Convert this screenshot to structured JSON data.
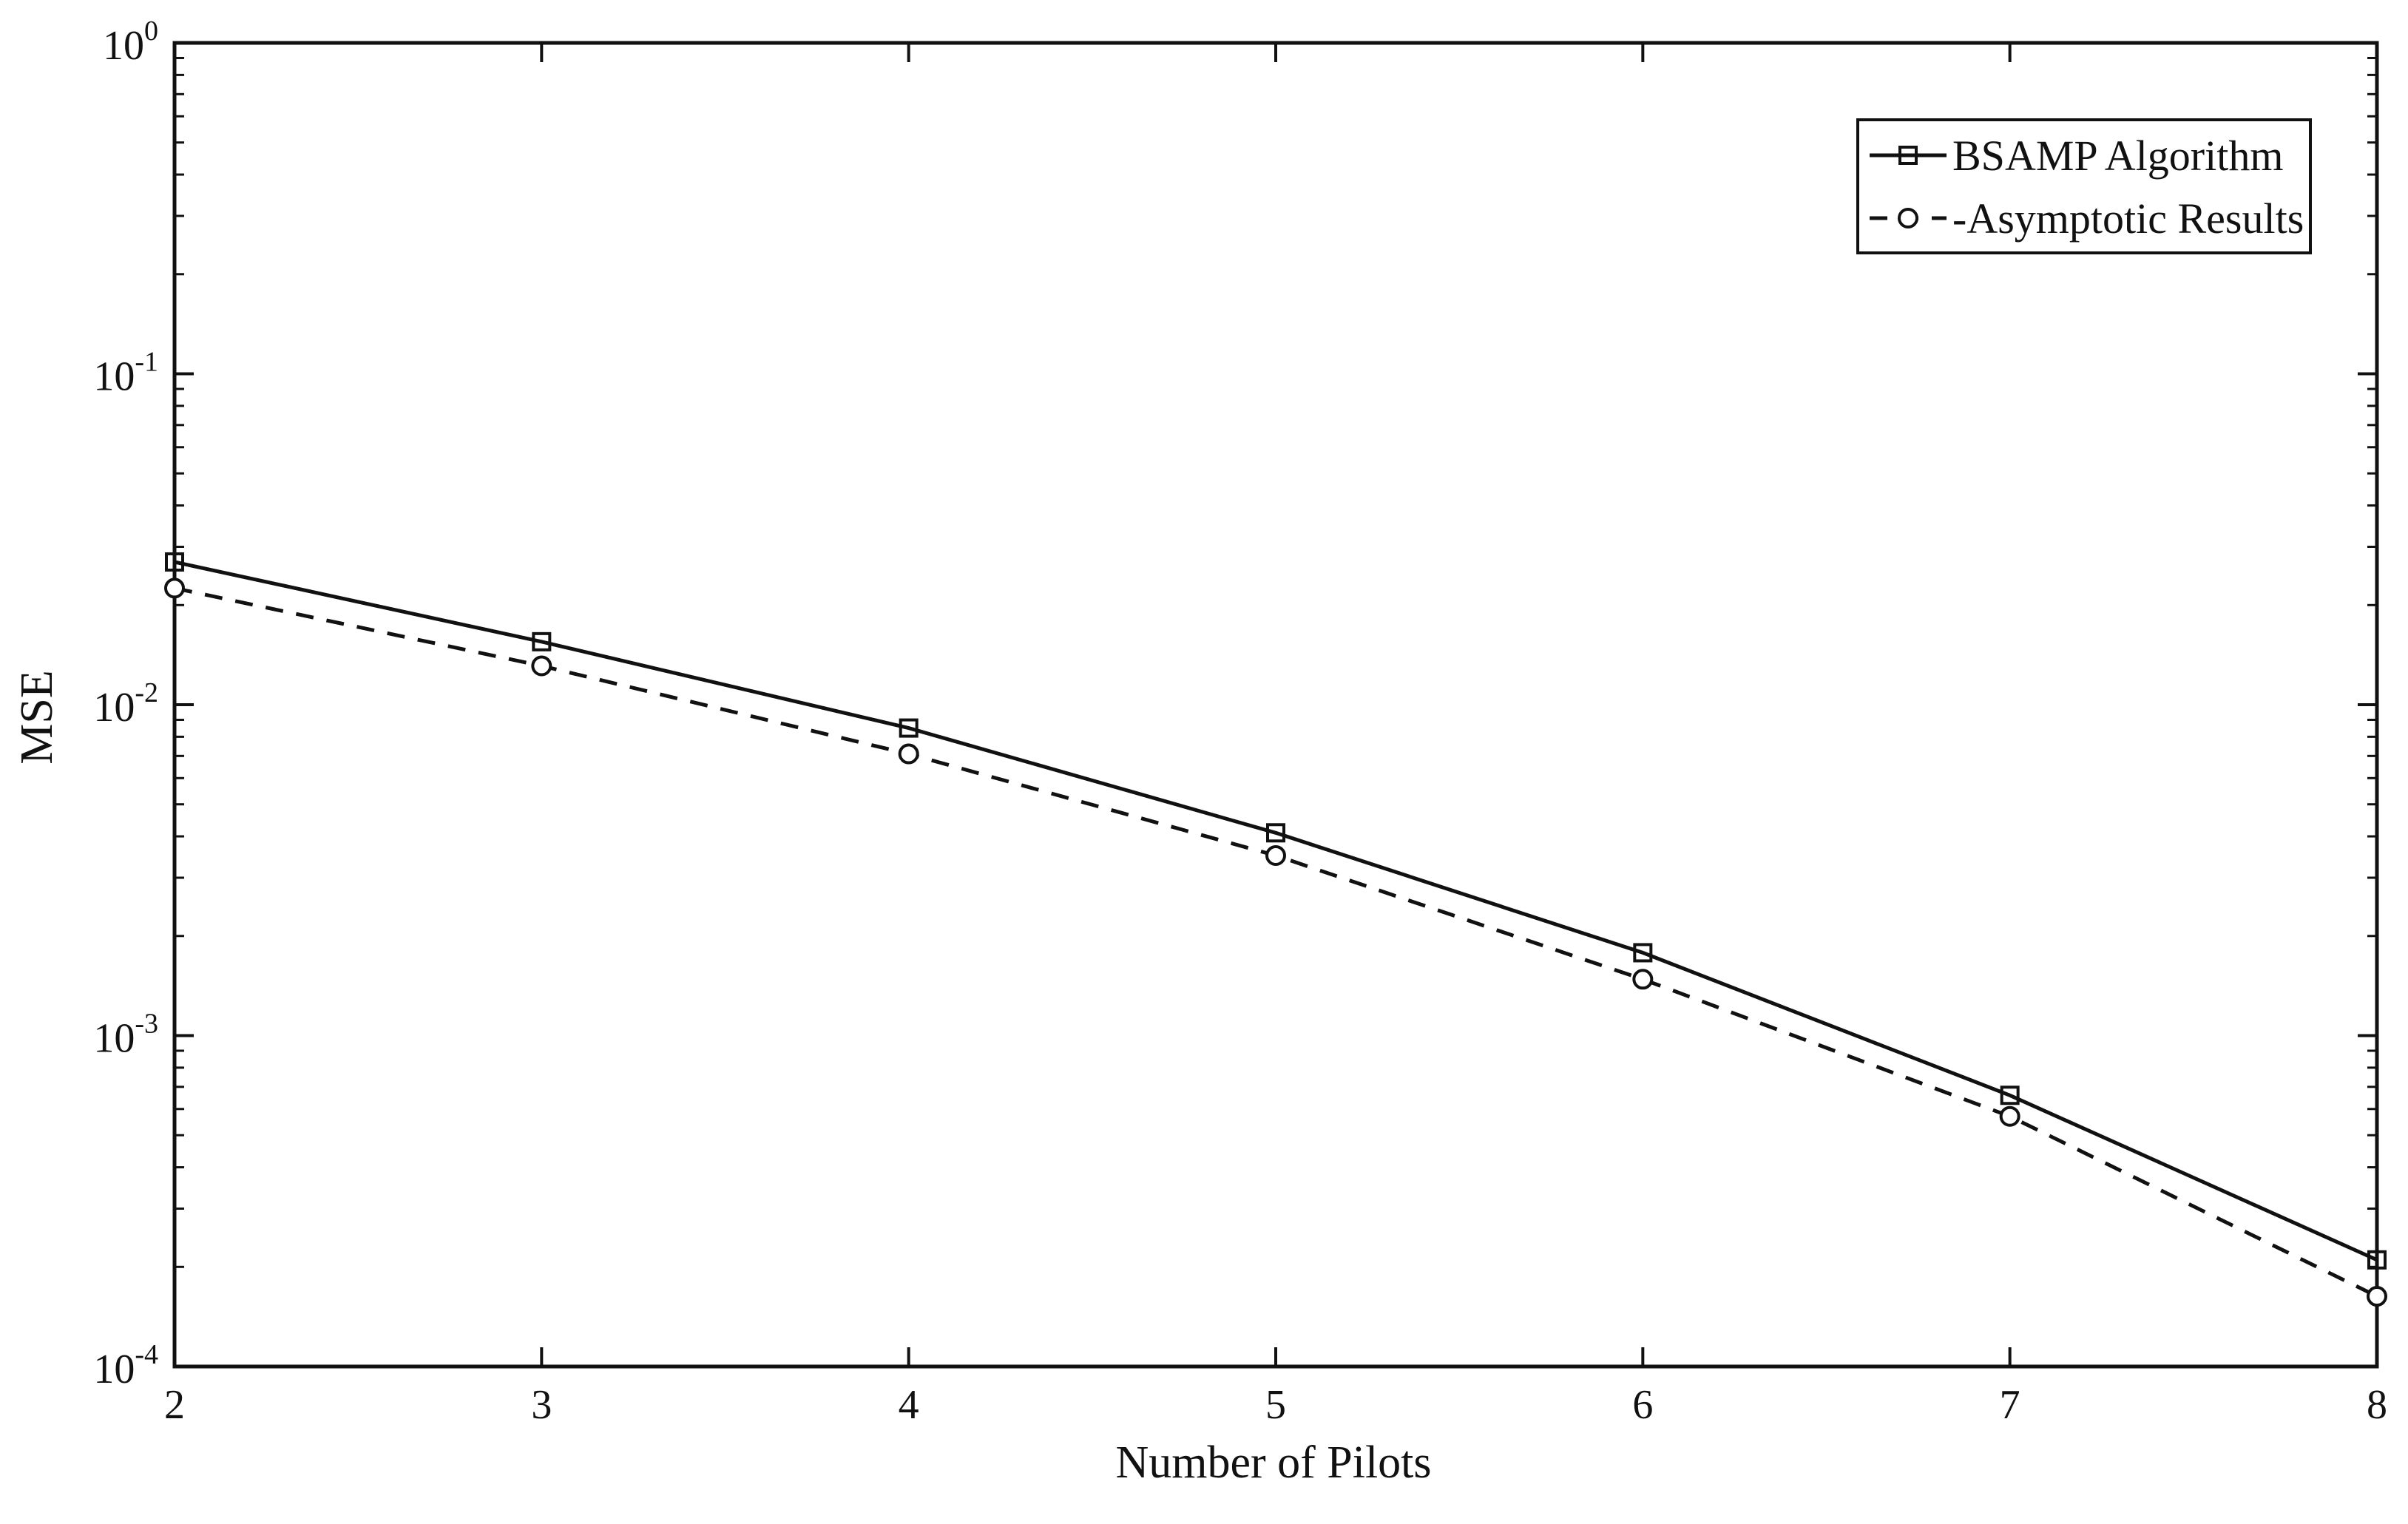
{
  "chart_data": {
    "type": "line",
    "xlabel": "Number of Pilots",
    "ylabel": "MSE",
    "x": [
      2,
      3,
      4,
      5,
      6,
      7,
      8
    ],
    "xlim": [
      2,
      8
    ],
    "ylim": [
      0.0001,
      1
    ],
    "yscale": "log",
    "x_ticks": [
      "2",
      "3",
      "4",
      "5",
      "6",
      "7",
      "8"
    ],
    "y_ticks": [
      {
        "value": 1,
        "base": "10",
        "exp": "0"
      },
      {
        "value": 0.1,
        "base": "10",
        "exp": "-1"
      },
      {
        "value": 0.01,
        "base": "10",
        "exp": "-2"
      },
      {
        "value": 0.001,
        "base": "10",
        "exp": "-3"
      },
      {
        "value": 0.0001,
        "base": "10",
        "exp": "-4"
      }
    ],
    "grid": false,
    "legend_position": "top-right",
    "series": [
      {
        "name": "BSAMP Algorithm",
        "line_style": "solid",
        "marker": "square",
        "color": "#111111",
        "values": [
          0.027,
          0.0155,
          0.0085,
          0.0041,
          0.00178,
          0.00066,
          0.00021
        ]
      },
      {
        "name": "-Asymptotic Results",
        "line_style": "dashed",
        "marker": "circle",
        "color": "#111111",
        "values": [
          0.0225,
          0.0131,
          0.0071,
          0.0035,
          0.00148,
          0.00057,
          0.000163
        ]
      }
    ]
  }
}
